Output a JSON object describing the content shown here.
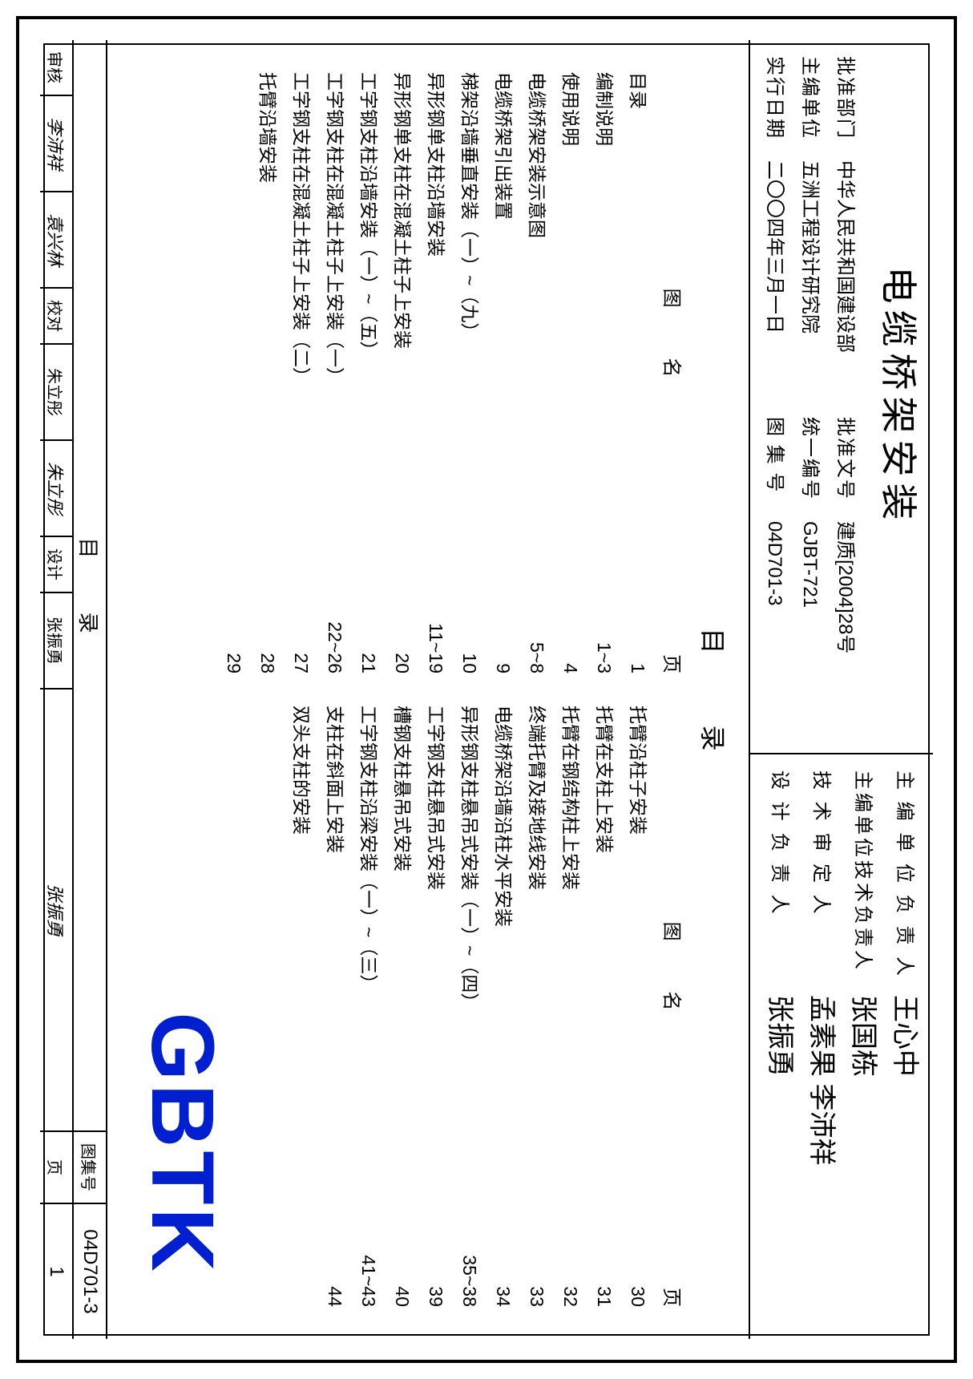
{
  "title": "电缆桥架安装",
  "header": {
    "approve_dept_label": "批准部门",
    "approve_dept": "中华人民共和国建设部",
    "doc_no_label": "批准文号",
    "doc_no": "建质[2004]28号",
    "editor_unit_label": "主编单位",
    "editor_unit": "五洲工程设计研究院",
    "uni_no_label": "统一编号",
    "uni_no": "GJBT-721",
    "effective_date_label": "实行日期",
    "effective_date": "二〇〇四年三月一日",
    "drawing_no_label": "图 集 号",
    "drawing_no": "04D701-3"
  },
  "signatures": {
    "lead_unit_label": "主 编 单 位 负 责 人",
    "lead_unit_sig": "王心中",
    "tech_lead_label": "主编单位技术负责人",
    "tech_lead_sig": "张国栋",
    "tech_review_label": "技  术  审  定  人",
    "tech_review_sig": "孟素果 李沛祥",
    "design_lead_label": "设  计  负  责  人",
    "design_lead_sig": "张振勇"
  },
  "toc_title": "目    录",
  "col_headers": {
    "name": "图    名",
    "page": "页"
  },
  "toc_left": [
    {
      "name": "目录",
      "page": "1"
    },
    {
      "name": "编制说明",
      "page": "1~3"
    },
    {
      "name": "使用说明",
      "page": "4"
    },
    {
      "name": "电缆桥架安装示意图",
      "page": "5~8"
    },
    {
      "name": "电缆桥架引出装置",
      "page": "9"
    },
    {
      "name": "梯架沿墙垂直安装（一）~（九）",
      "page": "10"
    },
    {
      "name": "异形钢单支柱沿墙安装",
      "page": "11~19"
    },
    {
      "name": "异形钢单支柱在混凝土柱子上安装",
      "page": "20"
    },
    {
      "name": "工字钢支柱沿墙安装（一）~（五）",
      "page": "21"
    },
    {
      "name": "工字钢支柱在混凝土柱子上安装（一）",
      "page": "22~26"
    },
    {
      "name": "工字钢支柱在混凝土柱子上安装（二）",
      "page": "27"
    },
    {
      "name": "托臂沿墙安装",
      "page": "28"
    },
    {
      "name": "",
      "page": "29"
    }
  ],
  "toc_right": [
    {
      "name": "托臂沿柱子安装",
      "page": "30"
    },
    {
      "name": "托臂在支柱上安装",
      "page": "31"
    },
    {
      "name": "托臂在钢结构柱上安装",
      "page": "32"
    },
    {
      "name": "终端托臂及接地线安装",
      "page": "33"
    },
    {
      "name": "电缆桥架沿墙沿柱水平安装",
      "page": "34"
    },
    {
      "name": "异形钢支柱悬吊式安装（一）~（四）",
      "page": "35~38"
    },
    {
      "name": "工字钢支柱悬吊式安装",
      "page": "39"
    },
    {
      "name": "槽钢支柱悬吊式安装",
      "page": "40"
    },
    {
      "name": "工字钢支柱沿梁安装（一）~（三）",
      "page": "41~43"
    },
    {
      "name": "支柱在斜面上安装",
      "page": "44"
    },
    {
      "name": "双头支柱的安装",
      "page": ""
    }
  ],
  "watermark": "GBTK",
  "footer": {
    "title": "目  录",
    "approve": "审核",
    "approve_sig": "李沛祥",
    "proof_sig": "袁兴林",
    "proof": "校对",
    "proof_name": "朱立彤",
    "proof_name_sig": "朱立彤",
    "design": "设计",
    "design_name": "张振勇",
    "design_sig": "张振勇",
    "drawing_no_label": "图集号",
    "drawing_no": "04D701-3",
    "page_label": "页",
    "page": "1"
  }
}
